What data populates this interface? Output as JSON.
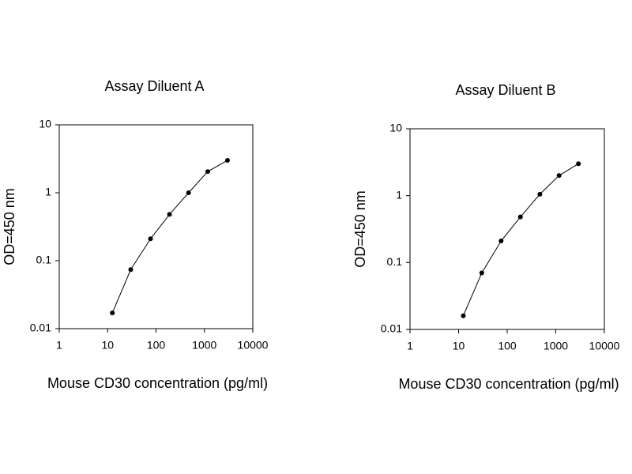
{
  "chart_data": [
    {
      "type": "line",
      "title": "Assay Diluent A",
      "xlabel": "Mouse CD30 concentration (pg/ml)",
      "ylabel": "OD=450 nm",
      "xscale": "log",
      "yscale": "log",
      "x": [
        12.5,
        30,
        77,
        190,
        470,
        1170,
        3000
      ],
      "series": [
        {
          "color": "#000000",
          "values": [
            0.017,
            0.074,
            0.21,
            0.48,
            1.0,
            2.05,
            3.0
          ]
        }
      ],
      "xlim": [
        1,
        10000
      ],
      "xticks": [
        1,
        10,
        100,
        1000,
        10000
      ],
      "ylim": [
        0.01,
        10
      ],
      "yticks": [
        0.01,
        0.1,
        1,
        10
      ]
    },
    {
      "type": "line",
      "title": "Assay Diluent B",
      "xlabel": "Mouse CD30 concentration (pg/ml)",
      "ylabel": "OD=450 nm",
      "xscale": "log",
      "yscale": "log",
      "x": [
        12.5,
        30,
        75,
        187,
        470,
        1170,
        2930
      ],
      "series": [
        {
          "color": "#000000",
          "values": [
            0.016,
            0.07,
            0.21,
            0.48,
            1.05,
            2.0,
            3.0
          ]
        }
      ],
      "xlim": [
        1,
        10000
      ],
      "xticks": [
        1,
        10,
        100,
        1000,
        10000
      ],
      "ylim": [
        0.01,
        10
      ],
      "yticks": [
        0.01,
        0.1,
        1,
        10
      ]
    }
  ]
}
